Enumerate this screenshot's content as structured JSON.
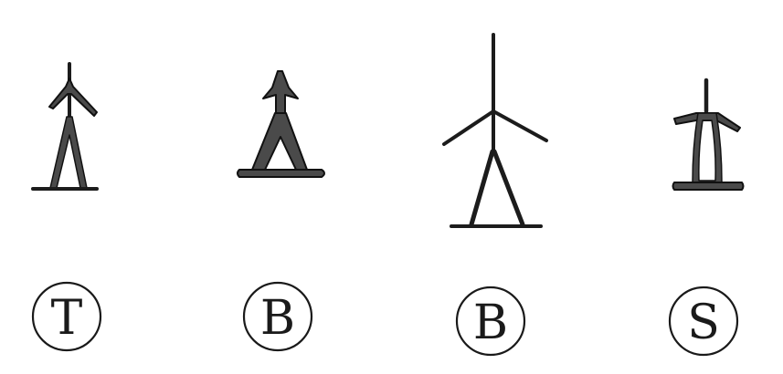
{
  "labels": [
    {
      "letter": "T"
    },
    {
      "letter": "B"
    },
    {
      "letter": "B"
    },
    {
      "letter": "S"
    }
  ],
  "colors": {
    "ink": "#1c1c1c",
    "fill": "#4a4a4a",
    "background": "#ffffff"
  }
}
